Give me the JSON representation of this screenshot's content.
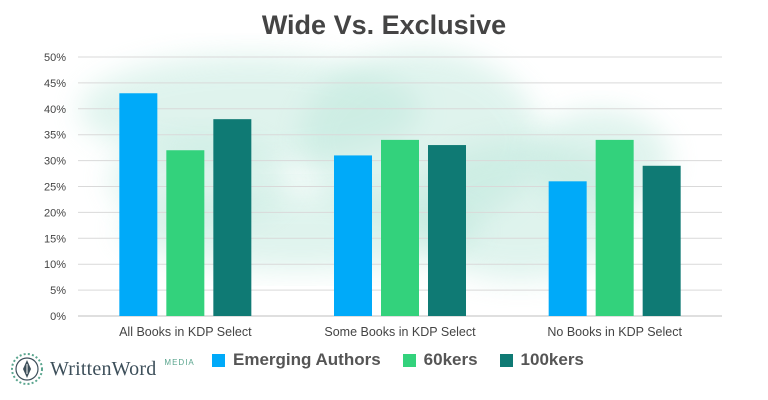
{
  "chart_data": {
    "type": "bar",
    "title": "Wide Vs. Exclusive",
    "categories": [
      "All Books in KDP Select",
      "Some Books in KDP Select",
      "No Books in KDP Select"
    ],
    "series": [
      {
        "name": "Emerging Authors",
        "color": "#00aaf9",
        "values": [
          43,
          31,
          26
        ]
      },
      {
        "name": "60kers",
        "color": "#33d27c",
        "values": [
          32,
          34,
          34
        ]
      },
      {
        "name": "100kers",
        "color": "#0f7a74",
        "values": [
          38,
          33,
          29
        ]
      }
    ],
    "ylim": [
      0,
      50
    ],
    "yticks": [
      "0%",
      "5%",
      "10%",
      "15%",
      "20%",
      "25%",
      "30%",
      "35%",
      "40%",
      "45%",
      "50%"
    ],
    "ytick_values": [
      0,
      5,
      10,
      15,
      20,
      25,
      30,
      35,
      40,
      45,
      50
    ],
    "grid": true,
    "legend_position": "bottom"
  },
  "branding": {
    "logo_text": "WrittenWord",
    "logo_sub": "MEDIA",
    "logo_icon": "pen-nib-badge-icon"
  },
  "colors": {
    "title": "#444444",
    "axis_text": "#444444",
    "grid": "#d9d9d9",
    "watercolor": "#b9e6d9"
  }
}
